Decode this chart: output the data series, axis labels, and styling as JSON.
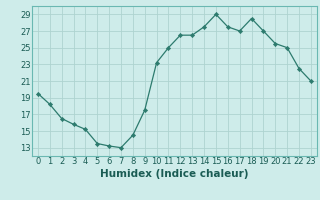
{
  "x": [
    0,
    1,
    2,
    3,
    4,
    5,
    6,
    7,
    8,
    9,
    10,
    11,
    12,
    13,
    14,
    15,
    16,
    17,
    18,
    19,
    20,
    21,
    22,
    23
  ],
  "y": [
    19.5,
    18.2,
    16.5,
    15.8,
    15.2,
    13.5,
    13.2,
    13.0,
    14.5,
    17.5,
    23.2,
    25.0,
    26.5,
    26.5,
    27.5,
    29.0,
    27.5,
    27.0,
    28.5,
    27.0,
    25.5,
    25.0,
    22.5,
    21.0
  ],
  "line_color": "#2d7b6e",
  "marker": "D",
  "marker_size": 2.2,
  "bg_color": "#ceecea",
  "grid_color": "#aed4d0",
  "xlabel": "Humidex (Indice chaleur)",
  "xlabel_fontsize": 7.5,
  "tick_fontsize": 6.0,
  "xlim": [
    -0.5,
    23.5
  ],
  "ylim": [
    12,
    30
  ],
  "yticks": [
    13,
    15,
    17,
    19,
    21,
    23,
    25,
    27,
    29
  ],
  "xticks": [
    0,
    1,
    2,
    3,
    4,
    5,
    6,
    7,
    8,
    9,
    10,
    11,
    12,
    13,
    14,
    15,
    16,
    17,
    18,
    19,
    20,
    21,
    22,
    23
  ],
  "spine_color": "#6ab8b2"
}
